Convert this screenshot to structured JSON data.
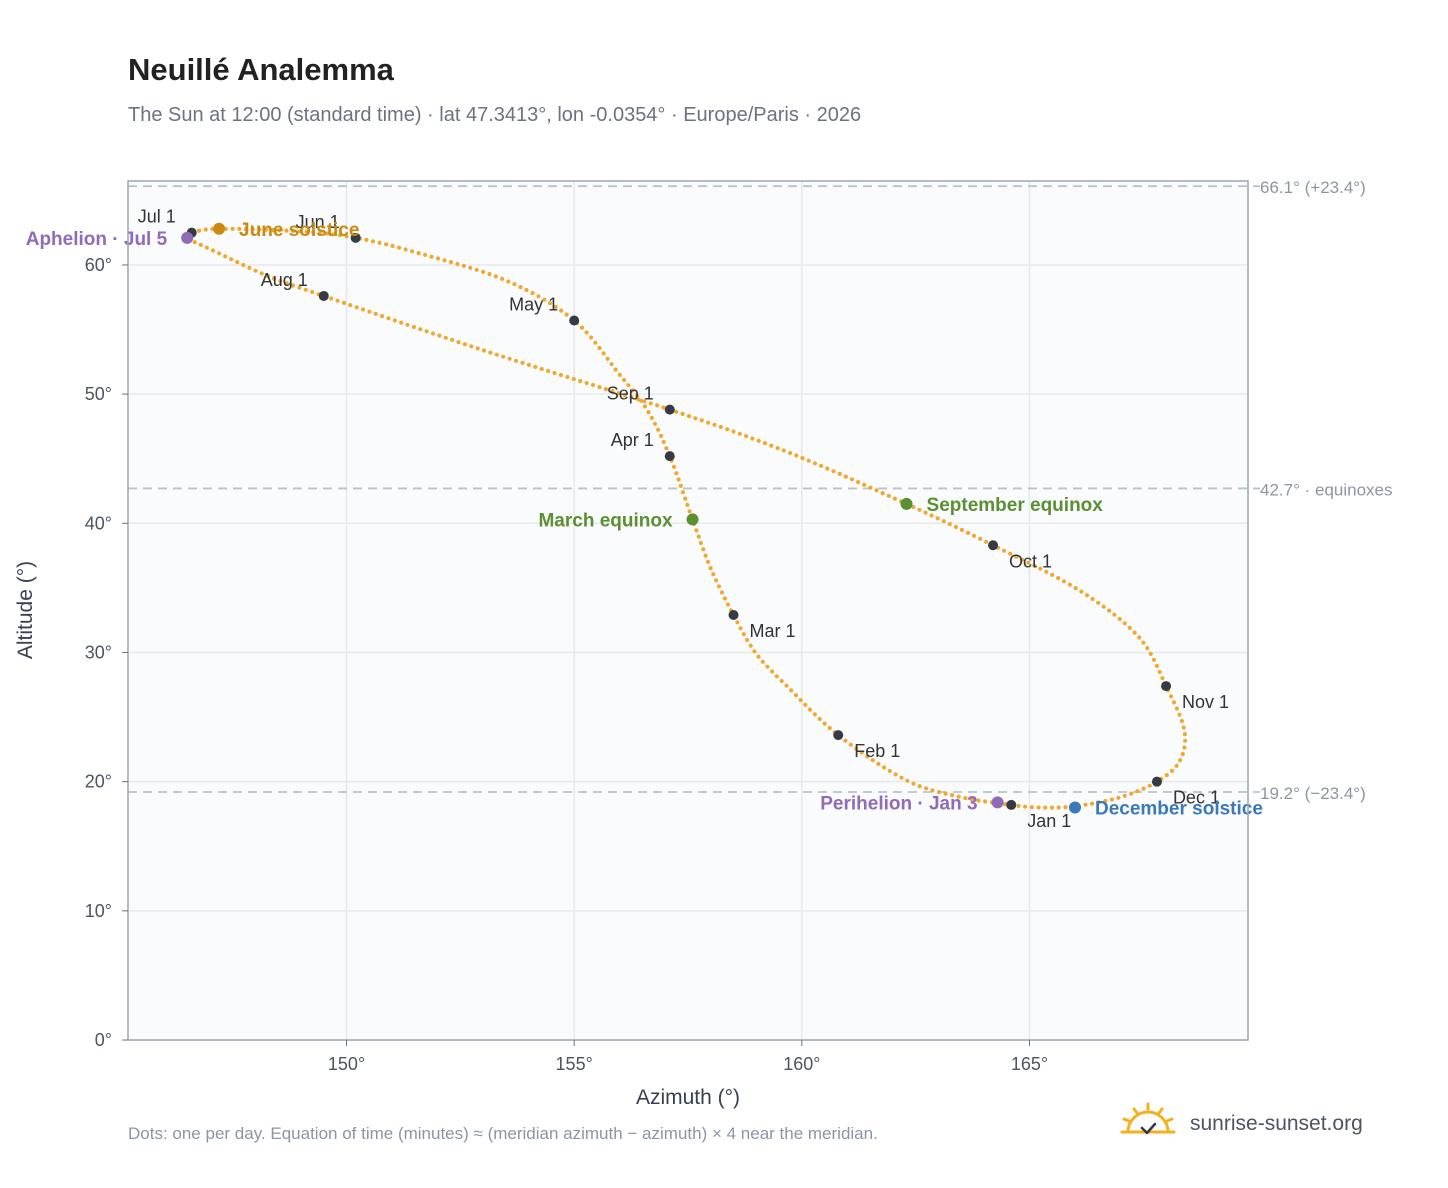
{
  "header": {
    "title": "Neuillé Analemma",
    "subtitle": "The Sun at 12:00 (standard time) · lat 47.3413°, lon -0.0354° · Europe/Paris · 2026"
  },
  "footer": {
    "note": "Dots: one per day. Equation of time (minutes) ≈ (meridian azimuth − azimuth) × 4 near the meridian.",
    "brand": "sunrise-sunset.org"
  },
  "colors": {
    "curve": "#f0a830",
    "month_dot": "#353a44",
    "equinox": "#5a8f32",
    "june_solstice": "#c98a12",
    "december_solstice": "#3a78b8",
    "apsis": "#8f6bb8",
    "ref_line": "#b8c4cc",
    "plot_bg": "#f9fbfd",
    "grid": "#e5e9ee",
    "frame": "#9aa6b4"
  },
  "chart_data": {
    "type": "scatter",
    "xlabel": "Azimuth (°)",
    "ylabel": "Altitude (°)",
    "xlim": [
      145.2,
      169.8
    ],
    "ylim": [
      0,
      66.5
    ],
    "grid": true,
    "x_ticks": [
      {
        "value": 150,
        "label": "150°"
      },
      {
        "value": 155,
        "label": "155°"
      },
      {
        "value": 160,
        "label": "160°"
      },
      {
        "value": 165,
        "label": "165°"
      }
    ],
    "y_ticks": [
      {
        "value": 0,
        "label": "0°"
      },
      {
        "value": 10,
        "label": "10°"
      },
      {
        "value": 20,
        "label": "20°"
      },
      {
        "value": 30,
        "label": "30°"
      },
      {
        "value": 40,
        "label": "40°"
      },
      {
        "value": 50,
        "label": "50°"
      },
      {
        "value": 60,
        "label": "60°"
      }
    ],
    "reference_lines": [
      {
        "value": 66.1,
        "label": "66.1° (+23.4°)"
      },
      {
        "value": 42.7,
        "label": "42.7° · equinoxes"
      },
      {
        "value": 19.2,
        "label": "19.2° (−23.4°)"
      }
    ],
    "month_markers": [
      {
        "label": "Jan 1",
        "az": 164.6,
        "alt": 18.2,
        "pos": "below-right"
      },
      {
        "label": "Feb 1",
        "az": 160.8,
        "alt": 23.6,
        "pos": "below-right"
      },
      {
        "label": "Mar 1",
        "az": 158.5,
        "alt": 32.9,
        "pos": "below-right"
      },
      {
        "label": "Apr 1",
        "az": 157.1,
        "alt": 45.2,
        "pos": "above-left"
      },
      {
        "label": "May 1",
        "az": 155.0,
        "alt": 55.7,
        "pos": "above-left"
      },
      {
        "label": "Jun 1",
        "az": 150.2,
        "alt": 62.1,
        "pos": "above-left"
      },
      {
        "label": "Jul 1",
        "az": 146.6,
        "alt": 62.5,
        "pos": "above-left"
      },
      {
        "label": "Aug 1",
        "az": 149.5,
        "alt": 57.6,
        "pos": "above-left"
      },
      {
        "label": "Sep 1",
        "az": 157.1,
        "alt": 48.8,
        "pos": "above-left"
      },
      {
        "label": "Oct 1",
        "az": 164.2,
        "alt": 38.3,
        "pos": "below-right"
      },
      {
        "label": "Nov 1",
        "az": 168.0,
        "alt": 27.4,
        "pos": "below-right"
      },
      {
        "label": "Dec 1",
        "az": 167.8,
        "alt": 20.0,
        "pos": "below-right"
      }
    ],
    "events": [
      {
        "label": "March equinox",
        "az": 157.6,
        "alt": 40.3,
        "color": "#5a8f32",
        "pos": "left"
      },
      {
        "label": "June solstice",
        "az": 147.2,
        "alt": 62.8,
        "color": "#c98a12",
        "pos": "right"
      },
      {
        "label": "September equinox",
        "az": 162.3,
        "alt": 41.5,
        "color": "#5a8f32",
        "pos": "right"
      },
      {
        "label": "December solstice",
        "az": 166.0,
        "alt": 18.0,
        "color": "#3a78b8",
        "pos": "right"
      },
      {
        "label": "Perihelion · Jan 3",
        "az": 164.3,
        "alt": 18.4,
        "color": "#8f6bb8",
        "pos": "left"
      },
      {
        "label": "Aphelion · Jul 5",
        "az": 146.5,
        "alt": 62.1,
        "color": "#8f6bb8",
        "pos": "left"
      }
    ],
    "curve_control_points": [
      [
        165.2,
        18.0
      ],
      [
        164.6,
        18.2
      ],
      [
        163.5,
        18.8
      ],
      [
        162.3,
        20.1
      ],
      [
        160.8,
        23.6
      ],
      [
        159.7,
        27.3
      ],
      [
        159.0,
        29.9
      ],
      [
        158.5,
        32.9
      ],
      [
        158.0,
        36.5
      ],
      [
        157.6,
        40.3
      ],
      [
        157.1,
        45.2
      ],
      [
        156.6,
        48.8
      ],
      [
        156.0,
        51.5
      ],
      [
        155.0,
        55.7
      ],
      [
        153.5,
        58.8
      ],
      [
        151.5,
        61.0
      ],
      [
        150.2,
        62.1
      ],
      [
        149.0,
        62.6
      ],
      [
        147.2,
        62.8
      ],
      [
        146.6,
        62.5
      ],
      [
        146.5,
        62.1
      ],
      [
        147.2,
        60.9
      ],
      [
        148.3,
        59.1
      ],
      [
        149.5,
        57.6
      ],
      [
        153.0,
        53.4
      ],
      [
        157.1,
        48.8
      ],
      [
        159.7,
        45.5
      ],
      [
        162.3,
        41.5
      ],
      [
        164.2,
        38.3
      ],
      [
        166.1,
        34.8
      ],
      [
        167.4,
        31.2
      ],
      [
        168.0,
        27.4
      ],
      [
        168.4,
        24.0
      ],
      [
        168.3,
        21.6
      ],
      [
        167.8,
        20.0
      ],
      [
        167.0,
        18.8
      ],
      [
        166.0,
        18.1
      ],
      [
        165.2,
        18.0
      ]
    ]
  }
}
